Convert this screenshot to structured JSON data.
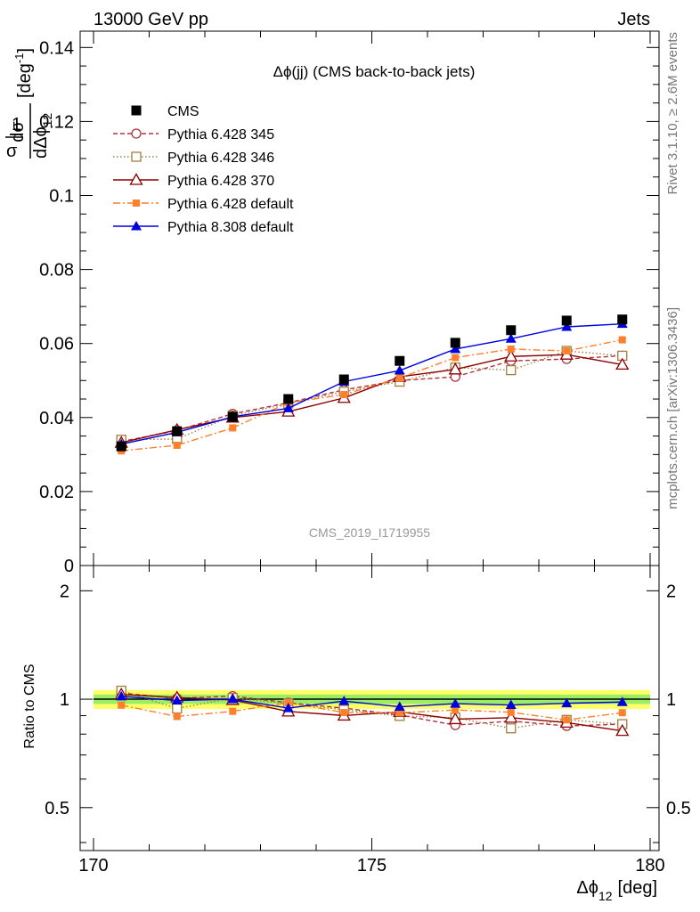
{
  "header": {
    "left": "13000 GeV pp",
    "right": "Jets"
  },
  "side_labels": {
    "rivet": "Rivet 3.1.10, ≥ 2.6M events",
    "mcplots": "mcplots.cern.ch [arXiv:1306.3436]"
  },
  "plot_title": "Δϕ(jj) (CMS back-to-back jets)",
  "watermark": "CMS_2019_I1719955",
  "axes": {
    "ylabel_main": {
      "prefix_num": "1",
      "prefix_den": "σ",
      "frac_num": "dσ",
      "frac_den": "dΔϕ",
      "frac_den_sub": "12",
      "unit": "[deg",
      "unit_sup": "-1",
      "unit_close": "]"
    },
    "ylabel_ratio": "Ratio to CMS",
    "xlabel": "Δϕ",
    "xlabel_sub": "12",
    "xlabel_unit": "[deg]"
  },
  "chart_data": {
    "type": "line",
    "x": [
      170.5,
      171.5,
      172.5,
      173.5,
      174.5,
      175.5,
      176.5,
      177.5,
      178.5,
      179.5
    ],
    "xlim": [
      170,
      180
    ],
    "xticks": [
      "170",
      "175",
      "180"
    ],
    "main": {
      "ylim": [
        0,
        0.142
      ],
      "yticks": [
        "0",
        "0.02",
        "0.04",
        "0.06",
        "0.08",
        "0.1",
        "0.12",
        "0.14"
      ]
    },
    "ratio": {
      "ylim": [
        0.38,
        2.35
      ],
      "yscale": "log",
      "yticks": [
        "0.5",
        "1",
        "2"
      ],
      "band_color": "#ffff66",
      "band_inner_color": "#99ee66"
    },
    "legend_position": "top-left",
    "series": [
      {
        "name": "CMS",
        "color": "#000000",
        "marker": "filled-square",
        "line": "none",
        "values": [
          0.0322,
          0.0363,
          0.0402,
          0.045,
          0.0503,
          0.0553,
          0.0602,
          0.0636,
          0.0662,
          0.0665
        ]
      },
      {
        "name": "Pythia 6.428 345",
        "color": "#b03040",
        "marker": "open-circle",
        "line": "dashed",
        "values": [
          0.0335,
          0.0365,
          0.041,
          0.044,
          0.0475,
          0.05,
          0.051,
          0.0553,
          0.0558,
          0.0567
        ]
      },
      {
        "name": "Pythia 6.428 346",
        "color": "#a08040",
        "marker": "open-square",
        "line": "dotted",
        "values": [
          0.034,
          0.0342,
          0.0405,
          0.0438,
          0.047,
          0.0497,
          0.0535,
          0.0528,
          0.058,
          0.0567
        ]
      },
      {
        "name": "Pythia 6.428 370",
        "color": "#8b0000",
        "marker": "open-triangle",
        "line": "solid",
        "values": [
          0.0332,
          0.0367,
          0.04,
          0.0416,
          0.0453,
          0.051,
          0.053,
          0.0565,
          0.057,
          0.0543
        ]
      },
      {
        "name": "Pythia 6.428 default",
        "color": "#ff7f2a",
        "marker": "filled-square-small",
        "line": "dashdot",
        "values": [
          0.031,
          0.0325,
          0.0372,
          0.044,
          0.0462,
          0.0507,
          0.0562,
          0.0585,
          0.058,
          0.061
        ]
      },
      {
        "name": "Pythia 8.308 default",
        "color": "#0000dd",
        "marker": "filled-triangle",
        "line": "solid",
        "values": [
          0.0328,
          0.036,
          0.0402,
          0.0425,
          0.0497,
          0.0527,
          0.0585,
          0.0613,
          0.0645,
          0.0653
        ]
      }
    ]
  }
}
